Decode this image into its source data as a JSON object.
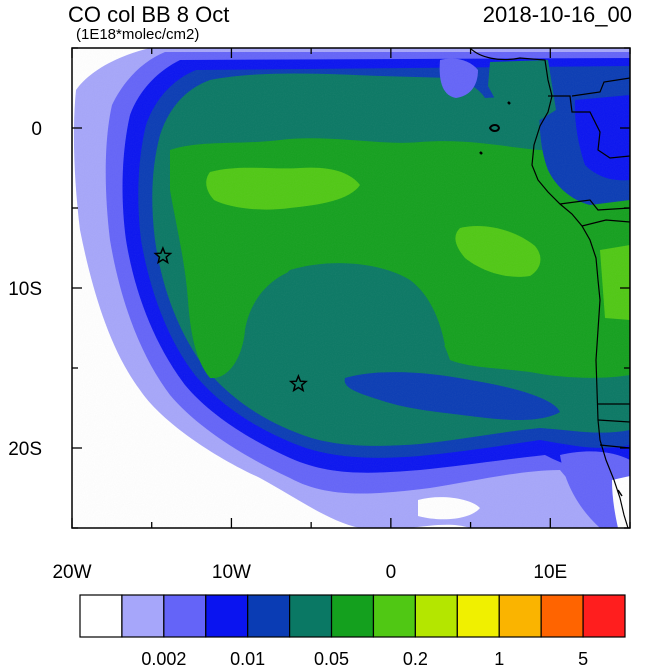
{
  "title": "CO col BB 8 Oct",
  "units": "(1E18*molec/cm2)",
  "date": "2018-10-16_00",
  "map": {
    "projection": "cylindrical",
    "lon_range": [
      -20,
      15
    ],
    "lat_range": [
      -25,
      5
    ],
    "x_ticks": [
      {
        "value": -20,
        "label": "20W"
      },
      {
        "value": -10,
        "label": "10W"
      },
      {
        "value": 0,
        "label": "0"
      },
      {
        "value": 10,
        "label": "10E"
      }
    ],
    "y_ticks": [
      {
        "value": 0,
        "label": "0"
      },
      {
        "value": -10,
        "label": "10S"
      },
      {
        "value": -20,
        "label": "20S"
      }
    ],
    "markers": [
      {
        "type": "star",
        "lon": -14.3,
        "lat": -8.0
      },
      {
        "type": "star",
        "lon": -5.8,
        "lat": -16.0
      }
    ]
  },
  "colorbar": {
    "colors": [
      "#ffffff",
      "#a6a6fa",
      "#6464f8",
      "#0a14f0",
      "#0a3cb4",
      "#0a7864",
      "#14a01e",
      "#50c814",
      "#b4e600",
      "#f0f000",
      "#fab400",
      "#ff6400",
      "#ff1e1e"
    ],
    "labels": [
      {
        "after_box": 2,
        "text": "0.002"
      },
      {
        "after_box": 4,
        "text": "0.01"
      },
      {
        "after_box": 6,
        "text": "0.05"
      },
      {
        "after_box": 8,
        "text": "0.2"
      },
      {
        "after_box": 10,
        "text": "1"
      },
      {
        "after_box": 12,
        "text": "5"
      }
    ]
  }
}
